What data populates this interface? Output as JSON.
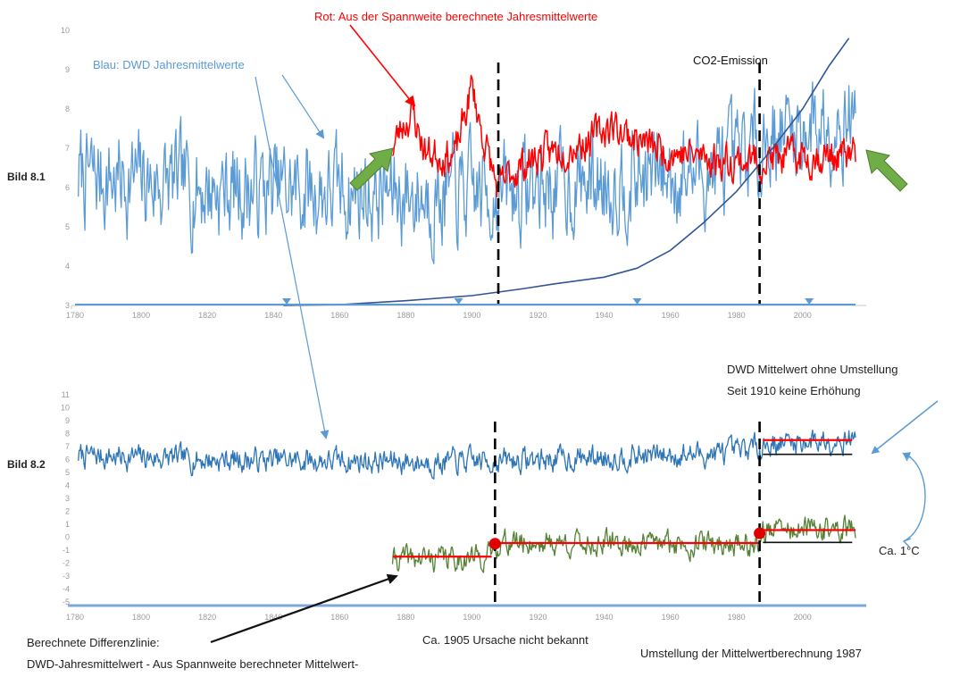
{
  "labels": {
    "panel1": "Bild 8.1",
    "panel2": "Bild 8.2",
    "red_title": "Rot: Aus der Spannweite berechnete Jahresmittelwerte",
    "blue_title": "Blau: DWD Jahresmittelwerte",
    "co2": "CO2-Emission",
    "dwd_note_1": "DWD Mittelwert ohne Umstellung",
    "dwd_note_2": "Seit 1910 keine Erhöhung",
    "ca_1c": "Ca. 1°C",
    "diff_1": "Berechnete Differenzlinie:",
    "diff_2": "DWD-Jahresmittelwert - Aus Spannweite berechneter Mittelwert-",
    "ca_1905": "Ca. 1905 Ursache nicht bekannt",
    "umstellung": "Umstellung der Mittelwertberechnung 1987"
  },
  "colors": {
    "blue": "#5b9bd5",
    "blue_dark": "#2e75b6",
    "red": "#ff0000",
    "green": "#548235",
    "arrow_green": "#70ad47",
    "co2_line": "#2f5597",
    "zero_line": "#4472c4"
  },
  "chart_data": [
    {
      "id": "bild-8-1",
      "type": "line",
      "x_range": [
        1780,
        2016
      ],
      "x_ticks": [
        "1780",
        "1800",
        "1820",
        "1840",
        "1860",
        "1880",
        "1900",
        "1920",
        "1940",
        "1960",
        "1980",
        "2000"
      ],
      "y_range": [
        3,
        10
      ],
      "y_ticks": [
        "3",
        "4",
        "5",
        "6",
        "7",
        "8",
        "9",
        "10"
      ],
      "grid": false,
      "series": [
        {
          "name": "Blau: DWD Jahresmittelwerte",
          "color": "blue",
          "x_start": 1781,
          "x_end": 2016,
          "seed": 7,
          "mean": 6.25,
          "amplitude": 1.2,
          "trend": [
            [
              1781,
              6.3
            ],
            [
              1820,
              6.0
            ],
            [
              1860,
              5.9
            ],
            [
              1890,
              5.8
            ],
            [
              1910,
              5.9
            ],
            [
              1940,
              6.2
            ],
            [
              1980,
              6.5
            ],
            [
              1988,
              7.3
            ],
            [
              2016,
              7.9
            ]
          ]
        },
        {
          "name": "Rot: Aus der Spannweite berechnete Jahresmittelwerte",
          "color": "red",
          "x_start": 1876,
          "x_end": 2016,
          "seed": 23,
          "amplitude": 0.45,
          "trend": [
            [
              1876,
              7.0
            ],
            [
              1879,
              7.6
            ],
            [
              1882,
              7.9
            ],
            [
              1886,
              6.9
            ],
            [
              1895,
              6.8
            ],
            [
              1900,
              8.6
            ],
            [
              1903,
              7.4
            ],
            [
              1908,
              5.9
            ],
            [
              1912,
              6.4
            ],
            [
              1920,
              6.8
            ],
            [
              1935,
              7.2
            ],
            [
              1942,
              7.6
            ],
            [
              1955,
              7.0
            ],
            [
              1975,
              6.7
            ],
            [
              1988,
              6.7
            ],
            [
              2000,
              6.8
            ],
            [
              2016,
              6.8
            ]
          ]
        },
        {
          "name": "CO2-Emission",
          "color": "co2_line",
          "points": [
            [
              1843,
              3.0
            ],
            [
              1860,
              3.02
            ],
            [
              1880,
              3.12
            ],
            [
              1900,
              3.25
            ],
            [
              1915,
              3.42
            ],
            [
              1925,
              3.55
            ],
            [
              1940,
              3.72
            ],
            [
              1950,
              3.95
            ],
            [
              1960,
              4.4
            ],
            [
              1970,
              5.1
            ],
            [
              1980,
              5.9
            ],
            [
              1990,
              6.9
            ],
            [
              2000,
              8.0
            ],
            [
              2008,
              9.1
            ],
            [
              2014,
              9.8
            ]
          ]
        }
      ],
      "markers_x": [
        1844,
        1896,
        1950,
        2002
      ],
      "dashed_x": [
        1908,
        1987
      ]
    },
    {
      "id": "bild-8-2",
      "type": "line",
      "x_range": [
        1780,
        2016
      ],
      "x_ticks": [
        "1780",
        "1800",
        "1820",
        "1840",
        "1860",
        "1880",
        "1900",
        "1920",
        "1940",
        "1960",
        "1980",
        "2000"
      ],
      "y_range": [
        -5,
        11
      ],
      "y_ticks": [
        "-5",
        "-4",
        "-3",
        "-2",
        "-1",
        "0",
        "1",
        "2",
        "3",
        "4",
        "5",
        "6",
        "7",
        "8",
        "9",
        "10",
        "11"
      ],
      "grid": false,
      "series": [
        {
          "name": "DWD Jahresmittelwert",
          "color": "blue_dark",
          "x_start": 1781,
          "x_end": 2016,
          "seed": 7,
          "mean": 6.25,
          "amplitude": 0.9,
          "trend": [
            [
              1781,
              6.3
            ],
            [
              1820,
              6.0
            ],
            [
              1860,
              5.9
            ],
            [
              1890,
              5.8
            ],
            [
              1910,
              5.9
            ],
            [
              1940,
              6.2
            ],
            [
              1980,
              6.5
            ],
            [
              1988,
              7.2
            ],
            [
              2016,
              7.7
            ]
          ]
        },
        {
          "name": "Berechnete Differenzlinie",
          "color": "green",
          "x_start": 1876,
          "x_end": 2016,
          "seed": 41,
          "amplitude": 0.9,
          "trend": [
            [
              1876,
              -1.7
            ],
            [
              1895,
              -1.6
            ],
            [
              1905,
              -1.5
            ],
            [
              1908,
              -0.4
            ],
            [
              1940,
              -0.5
            ],
            [
              1987,
              -0.5
            ],
            [
              1988,
              0.5
            ],
            [
              2016,
              0.6
            ]
          ]
        }
      ],
      "segments": [
        {
          "color": "red",
          "y": -1.5,
          "x": [
            1876,
            1906
          ]
        },
        {
          "color": "red",
          "y": -0.45,
          "x": [
            1908,
            1987
          ]
        },
        {
          "color": "red",
          "y": 0.55,
          "x": [
            1988,
            2016
          ]
        },
        {
          "color": "red",
          "y": 7.5,
          "x": [
            1988,
            2015
          ]
        },
        {
          "color": "black",
          "y": 6.4,
          "x": [
            1988,
            2015
          ]
        },
        {
          "color": "black",
          "y": -0.4,
          "x": [
            1988,
            2015
          ]
        }
      ],
      "dots": [
        [
          1907,
          -0.5
        ],
        [
          1987,
          0.3
        ]
      ],
      "dashed_x": [
        1907,
        1987
      ]
    }
  ]
}
